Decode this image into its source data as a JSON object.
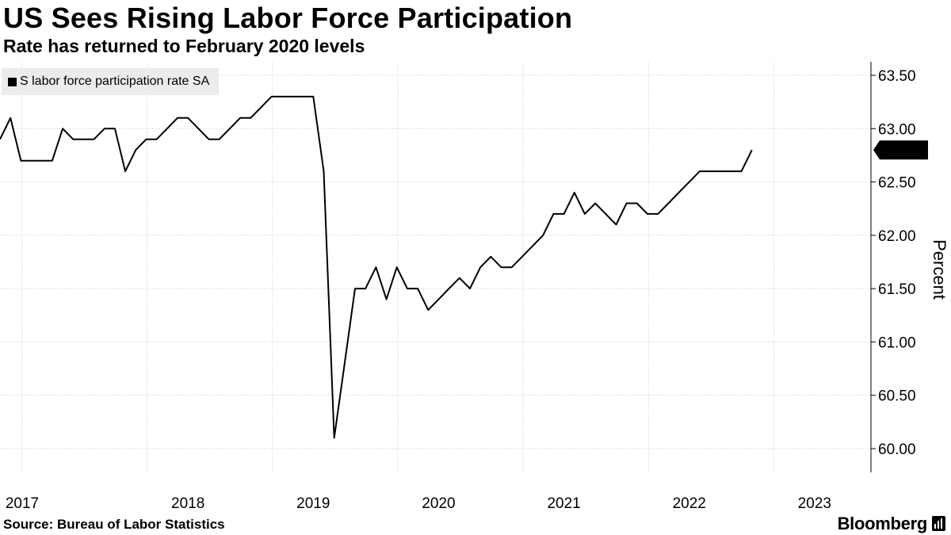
{
  "title": "US Sees Rising Labor Force Participation",
  "subtitle": "Rate has returned to February 2020 levels",
  "source": "Source: Bureau of Labor Statistics",
  "brand": "Bloomberg",
  "colors": {
    "line": "#000000",
    "grid": "#cccccc",
    "legend_bg": "#ececec",
    "badge_bg": "#000000",
    "badge_text": "#ffffff"
  },
  "chart_data": {
    "type": "line",
    "title": "US Sees Rising Labor Force Participation",
    "subtitle": "Rate has returned to February 2020 levels",
    "ylabel": "Percent",
    "ylim": [
      59.9,
      63.6
    ],
    "y_ticks": [
      "60.00",
      "60.50",
      "61.00",
      "61.50",
      "62.00",
      "62.50",
      "63.00",
      "63.50"
    ],
    "y_tick_values": [
      60.0,
      60.5,
      61.0,
      61.5,
      62.0,
      62.5,
      63.0,
      63.5
    ],
    "x_ticks": [
      "2017",
      "2018",
      "2019",
      "2020",
      "2021",
      "2022",
      "2023"
    ],
    "x_tick_values": [
      2017,
      2018,
      2019,
      2020,
      2021,
      2022,
      2023
    ],
    "xlim": [
      2017.0,
      2023.95
    ],
    "grid": true,
    "legend_position": "top-left",
    "last_value_label": "62.80",
    "series": [
      {
        "name": "S labor force participation rate SA",
        "start": "2017-01",
        "frequency": "monthly",
        "values": [
          62.9,
          63.1,
          62.7,
          62.7,
          62.7,
          62.7,
          63.0,
          62.9,
          62.9,
          62.9,
          63.0,
          63.0,
          62.6,
          62.8,
          62.9,
          62.9,
          63.0,
          63.1,
          63.1,
          63.0,
          62.9,
          62.9,
          63.0,
          63.1,
          63.1,
          63.2,
          63.3,
          63.3,
          63.3,
          63.3,
          63.3,
          62.6,
          60.1,
          60.8,
          61.5,
          61.5,
          61.7,
          61.4,
          61.7,
          61.5,
          61.5,
          61.3,
          61.4,
          61.5,
          61.6,
          61.5,
          61.7,
          61.8,
          61.7,
          61.7,
          61.8,
          61.9,
          62.0,
          62.2,
          62.2,
          62.4,
          62.2,
          62.3,
          62.2,
          62.1,
          62.3,
          62.3,
          62.2,
          62.2,
          62.3,
          62.4,
          62.5,
          62.6,
          62.6,
          62.6,
          62.6,
          62.6,
          62.8
        ]
      }
    ]
  }
}
